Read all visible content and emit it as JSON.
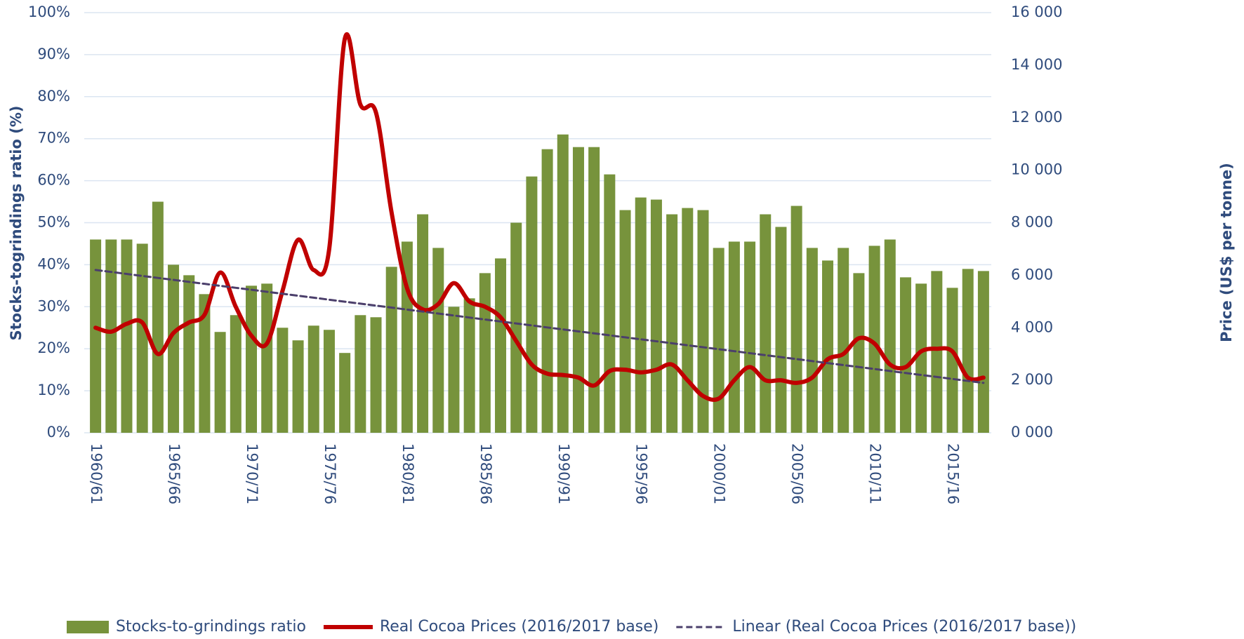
{
  "chart_data": {
    "type": "bar",
    "ylabel": "Stocks-togrindings ratio (%)",
    "y2label": "Price (US$ per tonne)",
    "categories": [
      "1960/61",
      null,
      null,
      null,
      null,
      "1965/66",
      null,
      null,
      null,
      null,
      "1970/71",
      null,
      null,
      null,
      null,
      "1975/76",
      null,
      null,
      null,
      null,
      "1980/81",
      null,
      null,
      null,
      null,
      "1985/86",
      null,
      null,
      null,
      null,
      "1990/91",
      null,
      null,
      null,
      null,
      "1995/96",
      null,
      null,
      null,
      null,
      "2000/01",
      null,
      null,
      null,
      null,
      "2005/06",
      null,
      null,
      null,
      null,
      "2010/11",
      null,
      null,
      null,
      null,
      "2015/16",
      null,
      null
    ],
    "series": [
      {
        "name": "Stocks-to-grindings ratio",
        "type": "bar",
        "color": "#77933c",
        "axis": "y",
        "values": [
          46,
          46,
          46,
          45,
          55,
          40,
          37.5,
          33,
          24,
          28,
          35,
          35.5,
          25,
          22,
          25.5,
          24.5,
          19,
          28,
          27.5,
          39.5,
          45.5,
          52,
          44,
          30,
          32,
          38,
          41.5,
          50,
          61,
          67.5,
          71,
          68,
          68,
          61.5,
          53,
          56,
          55.5,
          52,
          53.5,
          53,
          44,
          45.5,
          45.5,
          52,
          49,
          54,
          44,
          41,
          44,
          38,
          44.5,
          46,
          37,
          35.5,
          38.5,
          34.5,
          39,
          38.5
        ]
      },
      {
        "name": "Real Cocoa Prices (2016/2017 base)",
        "type": "line",
        "color": "#c00000",
        "axis": "y2",
        "values": [
          4000,
          3850,
          4150,
          4200,
          3000,
          3800,
          4200,
          4500,
          6100,
          4800,
          3700,
          3400,
          5400,
          7350,
          6200,
          7000,
          15000,
          12500,
          12200,
          8400,
          5500,
          4700,
          4900,
          5700,
          5000,
          4800,
          4400,
          3500,
          2600,
          2250,
          2200,
          2100,
          1800,
          2350,
          2400,
          2300,
          2400,
          2600,
          2000,
          1400,
          1300,
          2000,
          2500,
          2000,
          2000,
          1900,
          2100,
          2800,
          3000,
          3600,
          3400,
          2600,
          2500,
          3100,
          3200,
          3100,
          2100,
          2100
        ]
      },
      {
        "name": "Linear (Real Cocoa Prices (2016/2017 base))",
        "type": "line",
        "dashed": true,
        "color": "#4b3f6b",
        "axis": "y2",
        "values": [
          6200,
          6125,
          6049,
          5974,
          5898,
          5823,
          5747,
          5672,
          5596,
          5521,
          5446,
          5370,
          5295,
          5219,
          5144,
          5068,
          4993,
          4918,
          4842,
          4767,
          4691,
          4616,
          4540,
          4465,
          4389,
          4314,
          4239,
          4163,
          4088,
          4012,
          3937,
          3861,
          3786,
          3711,
          3635,
          3560,
          3484,
          3409,
          3333,
          3258,
          3182,
          3107,
          3032,
          2956,
          2881,
          2805,
          2730,
          2654,
          2579,
          2504,
          2428,
          2353,
          2277,
          2202,
          2126,
          2051,
          1975,
          1900
        ]
      }
    ],
    "ylim": [
      0,
      100
    ],
    "yticks": [
      {
        "value": 0,
        "label": "0%"
      },
      {
        "value": 10,
        "label": "10%"
      },
      {
        "value": 20,
        "label": "20%"
      },
      {
        "value": 30,
        "label": "30%"
      },
      {
        "value": 40,
        "label": "40%"
      },
      {
        "value": 50,
        "label": "50%"
      },
      {
        "value": 60,
        "label": "60%"
      },
      {
        "value": 70,
        "label": "70%"
      },
      {
        "value": 80,
        "label": "80%"
      },
      {
        "value": 90,
        "label": "90%"
      },
      {
        "value": 100,
        "label": "100%"
      }
    ],
    "y2lim": [
      0,
      16000
    ],
    "y2ticks": [
      {
        "value": 0,
        "label": "0 000"
      },
      {
        "value": 2000,
        "label": "2 000"
      },
      {
        "value": 4000,
        "label": "4 000"
      },
      {
        "value": 6000,
        "label": "6 000"
      },
      {
        "value": 8000,
        "label": "8 000"
      },
      {
        "value": 10000,
        "label": "10 000"
      },
      {
        "value": 12000,
        "label": "12 000"
      },
      {
        "value": 14000,
        "label": "14 000"
      },
      {
        "value": 16000,
        "label": "16 000"
      }
    ],
    "grid": true,
    "legend": "bottom"
  }
}
